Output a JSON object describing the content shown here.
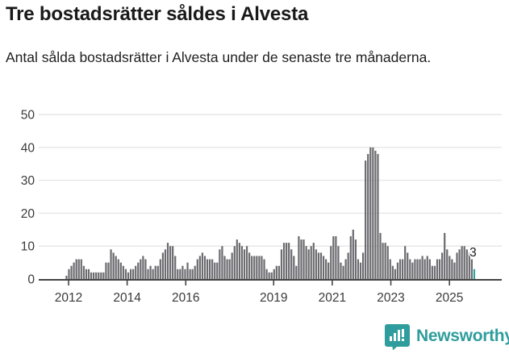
{
  "header": {
    "title": "Tre bostadsrätter såldes i Alvesta",
    "subtitle": "Antal sålda bostadsrätter i Alvesta under de senaste tre månaderna."
  },
  "chart_data": {
    "type": "bar",
    "title": "Tre bostadsrätter såldes i Alvesta",
    "subtitle": "Antal sålda bostadsrätter i Alvesta under de senaste tre månaderna.",
    "description": "Monthly rolling three-month count of sold condominiums, from late 2011 to 2025. Last bar highlighted in teal with data label 3.",
    "values": [
      1,
      3,
      4,
      5,
      6,
      6,
      6,
      4,
      3,
      3,
      2,
      2,
      2,
      2,
      2,
      2,
      5,
      5,
      9,
      8,
      7,
      6,
      5,
      4,
      3,
      2,
      3,
      3,
      4,
      5,
      6,
      7,
      6,
      3,
      4,
      3,
      4,
      4,
      6,
      8,
      9,
      11,
      10,
      10,
      7,
      3,
      3,
      4,
      3,
      5,
      3,
      3,
      4,
      6,
      7,
      8,
      7,
      6,
      6,
      6,
      5,
      5,
      9,
      10,
      7,
      6,
      6,
      8,
      10,
      12,
      11,
      10,
      9,
      10,
      8,
      7,
      7,
      7,
      7,
      7,
      6,
      3,
      2,
      2,
      3,
      4,
      4,
      9,
      11,
      11,
      11,
      9,
      7,
      4,
      13,
      12,
      12,
      10,
      9,
      10,
      11,
      9,
      8,
      8,
      7,
      6,
      5,
      10,
      13,
      13,
      10,
      5,
      4,
      6,
      8,
      13,
      15,
      12,
      6,
      5,
      8,
      36,
      38,
      40,
      40,
      39,
      38,
      14,
      11,
      11,
      10,
      6,
      4,
      3,
      5,
      6,
      6,
      10,
      8,
      6,
      5,
      6,
      6,
      6,
      7,
      6,
      7,
      6,
      4,
      4,
      6,
      6,
      8,
      14,
      9,
      7,
      6,
      5,
      8,
      9,
      10,
      10,
      9,
      8,
      6,
      3
    ],
    "last_value_label": "3",
    "y_ticks": [
      0,
      10,
      20,
      30,
      40,
      50
    ],
    "ylim": [
      0,
      50
    ],
    "x_tick_labels": [
      "2012",
      "2014",
      "2016",
      "2019",
      "2021",
      "2023",
      "2025"
    ],
    "grid": "horizontal",
    "legend": "none",
    "bar_color": "#6b6b70",
    "highlight_color": "#2aa5a1",
    "axis_color": "#444444",
    "grid_color": "#e6e6e6",
    "tick_label_color": "#3a3a3a"
  },
  "footer": {
    "brand": "Newsworthy",
    "brand_color": "#2f9d9d"
  }
}
